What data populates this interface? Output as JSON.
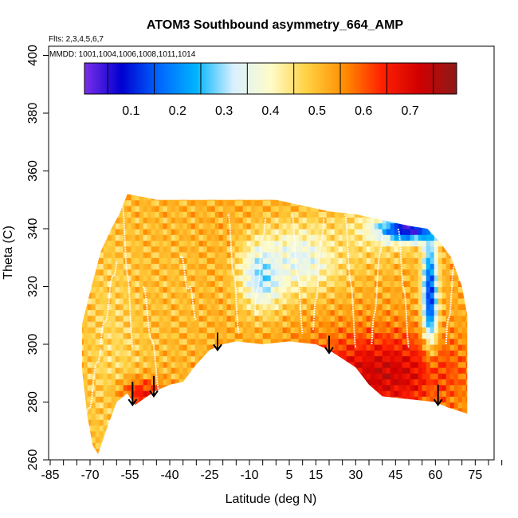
{
  "chart_data": {
    "type": "heatmap",
    "title": "ATOM3 Southbound asymmetry_664_AMP",
    "flights_label": "Flts: 2,3,4,5,6,7",
    "dates_label": "MMDD: 1001,1004,1006,1008,1011,1014",
    "xlabel": "Latitude (deg N)",
    "ylabel": "Theta (C)",
    "xlim": [
      -85,
      85
    ],
    "ylim": [
      260,
      400
    ],
    "x_ticks": [
      -85,
      -70,
      -55,
      -40,
      -25,
      -10,
      5,
      15,
      30,
      45,
      60,
      75
    ],
    "y_ticks": [
      260,
      280,
      300,
      320,
      340,
      360,
      380,
      400
    ],
    "colorbar": {
      "range": [
        0,
        0.8
      ],
      "ticks": [
        0.1,
        0.2,
        0.3,
        0.4,
        0.5,
        0.6,
        0.7
      ],
      "colors": [
        "#7a2fe8",
        "#0000d0",
        "#0066ff",
        "#00b4ff",
        "#d8f0ff",
        "#fffcc8",
        "#ffd040",
        "#ff8c00",
        "#ff2000",
        "#d00000",
        "#8c1a1a"
      ]
    },
    "coverage_top": [
      [
        -73,
        307
      ],
      [
        -70,
        318
      ],
      [
        -66,
        332
      ],
      [
        -62,
        340
      ],
      [
        -59,
        345
      ],
      [
        -56,
        352
      ],
      [
        -50,
        351
      ],
      [
        -45,
        350
      ],
      [
        -40,
        350
      ],
      [
        -35,
        350
      ],
      [
        -30,
        350
      ],
      [
        -20,
        350
      ],
      [
        -10,
        350
      ],
      [
        0,
        350
      ],
      [
        10,
        348
      ],
      [
        20,
        346
      ],
      [
        30,
        345
      ],
      [
        40,
        343
      ],
      [
        50,
        341
      ],
      [
        57,
        340
      ],
      [
        62,
        335
      ],
      [
        66,
        330
      ],
      [
        70,
        320
      ],
      [
        72,
        310
      ],
      [
        72,
        294
      ]
    ],
    "coverage_bottom": [
      [
        -73,
        291
      ],
      [
        -71,
        275
      ],
      [
        -69,
        265
      ],
      [
        -67,
        262
      ],
      [
        -64,
        270
      ],
      [
        -60,
        280
      ],
      [
        -56,
        283
      ],
      [
        -53,
        279
      ],
      [
        -50,
        281
      ],
      [
        -45,
        284
      ],
      [
        -40,
        286
      ],
      [
        -35,
        287
      ],
      [
        -30,
        293
      ],
      [
        -25,
        298
      ],
      [
        -20,
        300
      ],
      [
        -15,
        301
      ],
      [
        -5,
        300
      ],
      [
        5,
        301
      ],
      [
        15,
        300
      ],
      [
        20,
        298
      ],
      [
        25,
        295
      ],
      [
        30,
        292
      ],
      [
        35,
        286
      ],
      [
        40,
        282
      ],
      [
        50,
        281
      ],
      [
        60,
        280
      ],
      [
        65,
        278
      ],
      [
        72,
        276
      ]
    ],
    "fields": {
      "base": 0.52,
      "features": [
        {
          "lat": -60,
          "theta": 300,
          "value": 0.46,
          "sigma_lat": 10,
          "sigma_theta": 30
        },
        {
          "lat": -5,
          "theta": 324,
          "value": 0.27,
          "sigma_lat": 6,
          "sigma_theta": 8
        },
        {
          "lat": 10,
          "theta": 330,
          "value": 0.34,
          "sigma_lat": 10,
          "sigma_theta": 8
        },
        {
          "lat": 35,
          "theta": 338,
          "value": 0.45,
          "sigma_lat": 12,
          "sigma_theta": 8
        },
        {
          "lat": 50,
          "theta": 340,
          "value": 0.04,
          "sigma_lat": 8,
          "sigma_theta": 3
        },
        {
          "lat": 58,
          "theta": 315,
          "value": 0.1,
          "sigma_lat": 2,
          "sigma_theta": 16
        },
        {
          "lat": 40,
          "theta": 290,
          "value": 0.72,
          "sigma_lat": 20,
          "sigma_theta": 10
        },
        {
          "lat": -50,
          "theta": 283,
          "value": 0.68,
          "sigma_lat": 6,
          "sigma_theta": 4
        },
        {
          "lat": -40,
          "theta": 320,
          "value": 0.5,
          "sigma_lat": 12,
          "sigma_theta": 20
        }
      ]
    },
    "arrows": [
      {
        "lat": -54,
        "theta_top": 287,
        "theta_bottom": 279
      },
      {
        "lat": -46,
        "theta_top": 289,
        "theta_bottom": 282
      },
      {
        "lat": -22,
        "theta_top": 304,
        "theta_bottom": 298
      },
      {
        "lat": 20,
        "theta_top": 303,
        "theta_bottom": 297
      },
      {
        "lat": 61,
        "theta_top": 286,
        "theta_bottom": 279
      }
    ],
    "flight_tracks": [
      {
        "lat0": -72,
        "lat1": -66,
        "theta0": 270,
        "theta1": 300
      },
      {
        "lat0": -66,
        "lat1": -60,
        "theta0": 300,
        "theta1": 330
      },
      {
        "lat0": -58,
        "lat1": -54,
        "theta0": 350,
        "theta1": 300
      },
      {
        "lat0": -50,
        "lat1": -44,
        "theta0": 320,
        "theta1": 285
      },
      {
        "lat0": -36,
        "lat1": -30,
        "theta0": 330,
        "theta1": 310
      },
      {
        "lat0": -18,
        "lat1": -14,
        "theta0": 345,
        "theta1": 305
      },
      {
        "lat0": -8,
        "lat1": -4,
        "theta0": 310,
        "theta1": 345
      },
      {
        "lat0": 6,
        "lat1": 10,
        "theta0": 345,
        "theta1": 305
      },
      {
        "lat0": 14,
        "lat1": 18,
        "theta0": 305,
        "theta1": 345
      },
      {
        "lat0": 26,
        "lat1": 30,
        "theta0": 345,
        "theta1": 300
      },
      {
        "lat0": 36,
        "lat1": 40,
        "theta0": 300,
        "theta1": 340
      },
      {
        "lat0": 46,
        "lat1": 50,
        "theta0": 340,
        "theta1": 300
      },
      {
        "lat0": 64,
        "lat1": 68,
        "theta0": 300,
        "theta1": 335
      }
    ]
  }
}
